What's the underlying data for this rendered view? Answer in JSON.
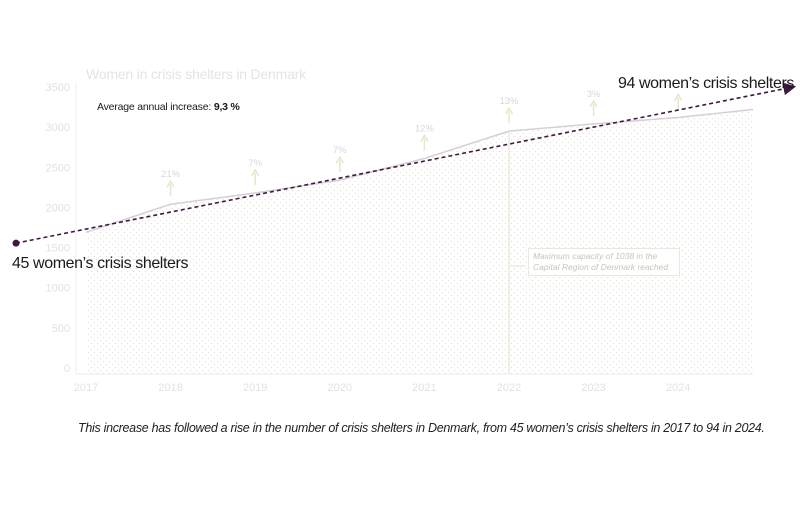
{
  "chart_data": {
    "type": "area",
    "title": "Women in crisis shelters in Denmark",
    "categories": [
      "2017",
      "2018",
      "2019",
      "2020",
      "2021",
      "2022",
      "2023",
      "2024"
    ],
    "values": [
      1690,
      2040,
      2180,
      2340,
      2610,
      2950,
      3040,
      3120
    ],
    "ylim": [
      0,
      3500
    ],
    "yticks": [
      "0",
      "500",
      "1000",
      "1500",
      "2000",
      "2500",
      "3000",
      "3500"
    ],
    "growth_labels": [
      "21%",
      "7%",
      "7%",
      "12%",
      "13%",
      "3%",
      ""
    ],
    "trend": {
      "from_year": "2017",
      "to_year": "2024",
      "from_value": 1530,
      "to_value": 3180
    },
    "annotations": {
      "start": "45 women’s crisis shelters",
      "end": "94 women’s crisis shelters",
      "avg_prefix": "Average annual increase: ",
      "avg_value": "9,3 %",
      "capacity_note": "Maximum capacity of 1038 in the Capital Region of Denmark reached",
      "capacity_year": "2022"
    },
    "grid": false,
    "colors": {
      "area_line": "#d4d0d6",
      "area_dots": "#ece6df",
      "trend": "#3d1a3e",
      "arrows": "#e8e5c8",
      "faint_text": "#e2e2e2"
    }
  },
  "caption": "This increase has followed a rise in the number of crisis shelters in Denmark, from 45 women’s crisis shelters in 2017 to 94 in 2024."
}
